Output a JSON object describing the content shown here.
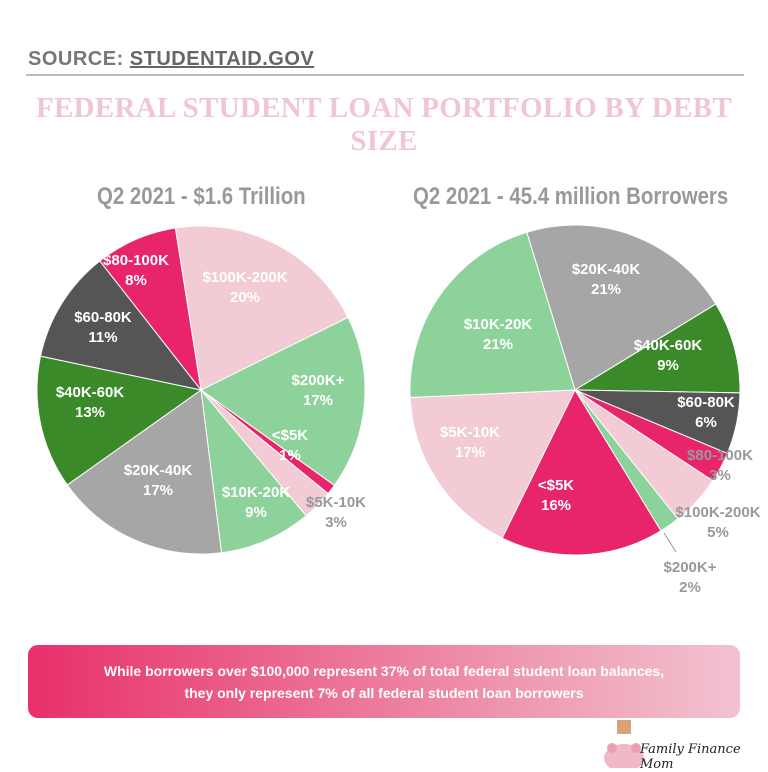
{
  "source": {
    "label": "SOURCE:",
    "link": "STUDENTAID.GOV"
  },
  "title": "FEDERAL STUDENT LOAN PORTFOLIO BY DEBT SIZE",
  "colors": {
    "light_pink": "#f2cbd4",
    "light_green": "#8dd29a",
    "hot_pink": "#e8246a",
    "gray": "#a6a6a6",
    "green": "#3b8a2a",
    "dark_gray": "#555555"
  },
  "chart_data": [
    {
      "type": "pie",
      "title": "Q2 2021 - $1.6 Trillion",
      "slices": [
        {
          "label": "$100K-200K",
          "value": 20,
          "text": "20%",
          "color": "#f2cbd4"
        },
        {
          "label": "$200K+",
          "value": 17,
          "text": "17%",
          "color": "#8dd29a"
        },
        {
          "label": "<$5K",
          "value": 1,
          "text": "1%",
          "color": "#e8246a"
        },
        {
          "label": "$5K-10K",
          "value": 3,
          "text": "3%",
          "color": "#f2cbd4"
        },
        {
          "label": "$10K-20K",
          "value": 9,
          "text": "9%",
          "color": "#8dd29a"
        },
        {
          "label": "$20K-40K",
          "value": 17,
          "text": "17%",
          "color": "#a6a6a6"
        },
        {
          "label": "$40K-60K",
          "value": 13,
          "text": "13%",
          "color": "#3b8a2a"
        },
        {
          "label": "$60-80K",
          "value": 11,
          "text": "11%",
          "color": "#555555"
        },
        {
          "label": "$80-100K",
          "value": 8,
          "text": "8%",
          "color": "#e8246a"
        }
      ]
    },
    {
      "type": "pie",
      "title": "Q2 2021 - 45.4 million Borrowers",
      "slices": [
        {
          "label": "$20K-40K",
          "value": 21,
          "text": "21%",
          "color": "#a6a6a6"
        },
        {
          "label": "$40K-60K",
          "value": 9,
          "text": "9%",
          "color": "#3b8a2a"
        },
        {
          "label": "$60-80K",
          "value": 6,
          "text": "6%",
          "color": "#555555"
        },
        {
          "label": "$80-100K",
          "value": 3,
          "text": "3%",
          "color": "#e8246a"
        },
        {
          "label": "$100K-200K",
          "value": 5,
          "text": "5%",
          "color": "#f2cbd4"
        },
        {
          "label": "$200K+",
          "value": 2,
          "text": "2%",
          "color": "#8dd29a"
        },
        {
          "label": "<$5K",
          "value": 16,
          "text": "16%",
          "color": "#e8246a"
        },
        {
          "label": "$5K-10K",
          "value": 17,
          "text": "17%",
          "color": "#f2cbd4"
        },
        {
          "label": "$10K-20K",
          "value": 21,
          "text": "21%",
          "color": "#8dd29a"
        }
      ]
    }
  ],
  "banner": {
    "line1": "While borrowers over $100,000 represent 37% of total federal student loan balances,",
    "line2": "they only represent 7% of all federal student loan borrowers"
  },
  "logo": {
    "text": "Family Finance Mom"
  }
}
